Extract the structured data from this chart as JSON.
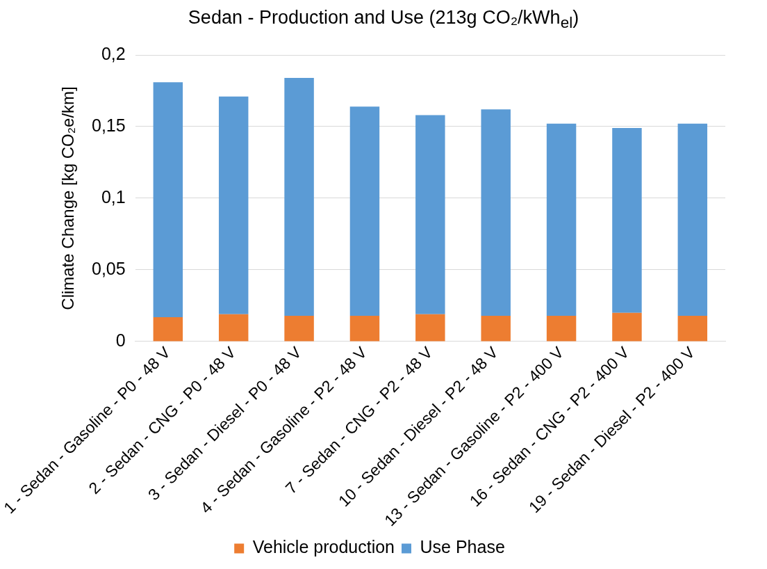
{
  "chart_data": {
    "type": "bar",
    "title": "Sedan - Production and Use (213g CO₂/kWh$_{el}$)",
    "ylabel": "Climate Change [kg CO₂e/km]",
    "categories": [
      "1 - Sedan - Gasoline - P0 - 48 V",
      "2 - Sedan - CNG - P0 - 48 V",
      "3 - Sedan - Diesel - P0 - 48 V",
      "4 - Sedan - Gasoline - P2 - 48 V",
      "7 - Sedan - CNG - P2 - 48 V",
      "10 - Sedan - Diesel - P2 - 48 V",
      "13 - Sedan - Gasoline - P2 - 400 V",
      "16 - Sedan - CNG - P2 - 400 V",
      "19 - Sedan - Diesel - P2 - 400 V"
    ],
    "series": [
      {
        "name": "Vehicle production",
        "color": "#ed7d31",
        "values": [
          0.017,
          0.019,
          0.018,
          0.018,
          0.019,
          0.018,
          0.018,
          0.02,
          0.018
        ]
      },
      {
        "name": "Use Phase",
        "color": "#5b9bd5",
        "values": [
          0.164,
          0.152,
          0.166,
          0.146,
          0.139,
          0.144,
          0.134,
          0.129,
          0.134
        ]
      }
    ],
    "stacked": true,
    "ylim": [
      0,
      0.2
    ],
    "yticks": [
      0,
      {
        "value": 0.05,
        "label": "0,05"
      },
      {
        "value": 0.1,
        "label": "0,1"
      },
      {
        "value": 0.15,
        "label": "0,15"
      },
      {
        "value": 0.2,
        "label": "0,2"
      }
    ],
    "grid": "y",
    "legend": "bottom"
  }
}
